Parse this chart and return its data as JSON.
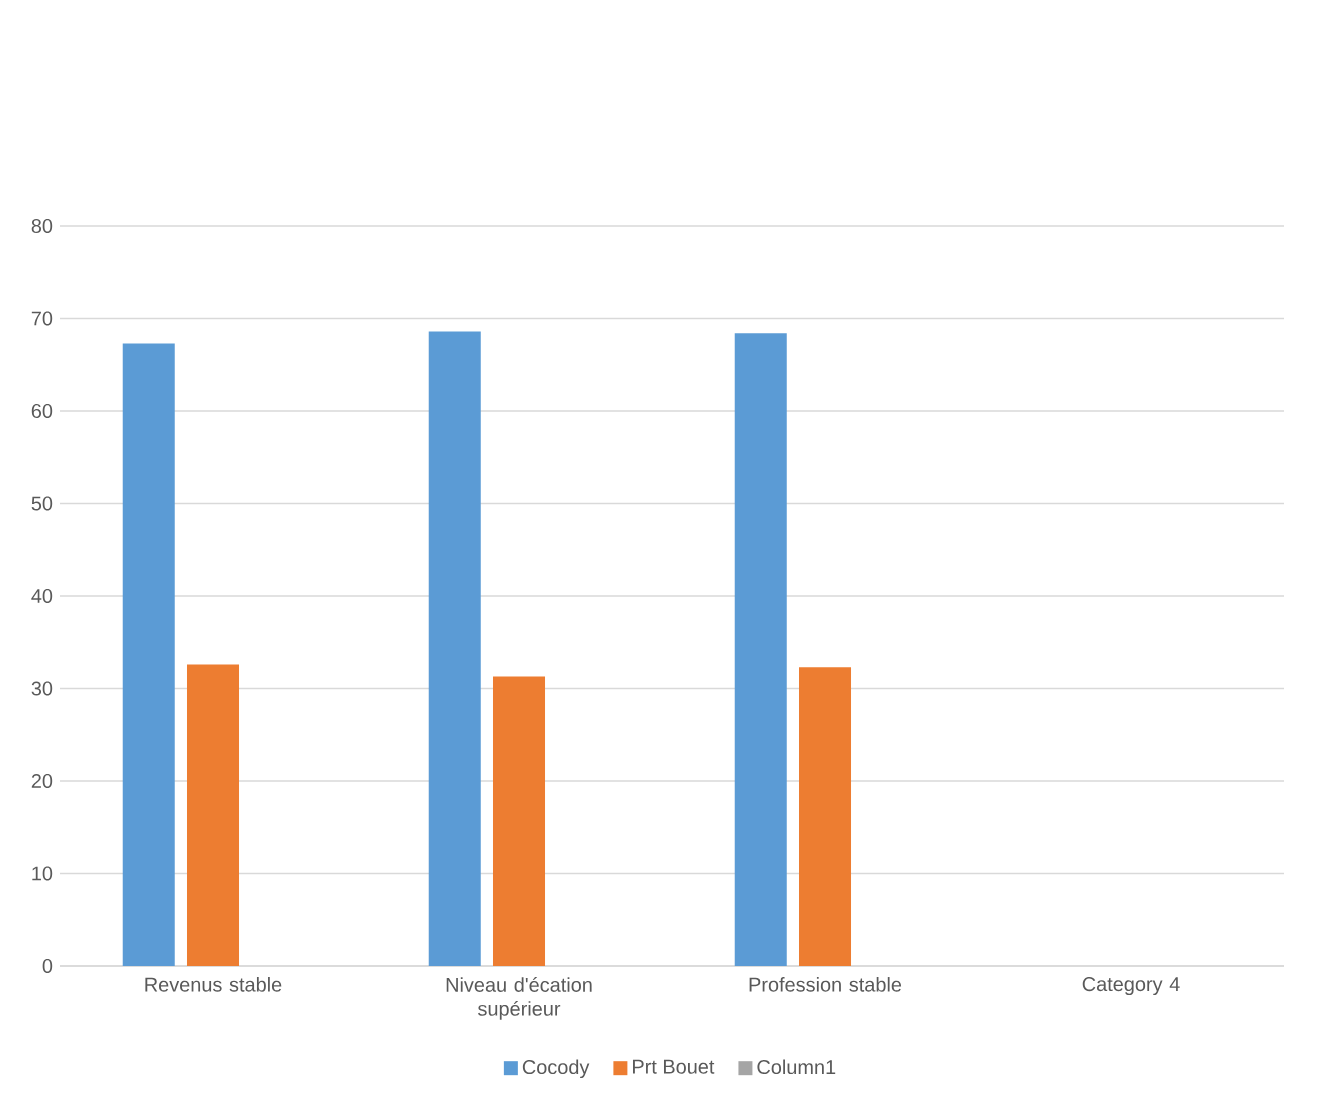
{
  "chart_data": {
    "type": "bar",
    "categories": [
      "Revenus stable",
      "Niveau d'écation supérieur",
      "Profession stable",
      "Category 4"
    ],
    "series": [
      {
        "name": "Cocody",
        "color": "#5b9bd5",
        "values": [
          67.3,
          68.6,
          68.4,
          null
        ]
      },
      {
        "name": "Prt Bouet",
        "color": "#ed7d31",
        "values": [
          32.6,
          31.3,
          32.3,
          null
        ]
      },
      {
        "name": "Column1",
        "color": "#a5a5a5",
        "values": [
          null,
          null,
          null,
          null
        ]
      }
    ],
    "ylim": [
      0,
      80
    ],
    "yticks": [
      0,
      10,
      20,
      30,
      40,
      50,
      60,
      70,
      80
    ],
    "grid": "y",
    "legend": "bottom"
  }
}
